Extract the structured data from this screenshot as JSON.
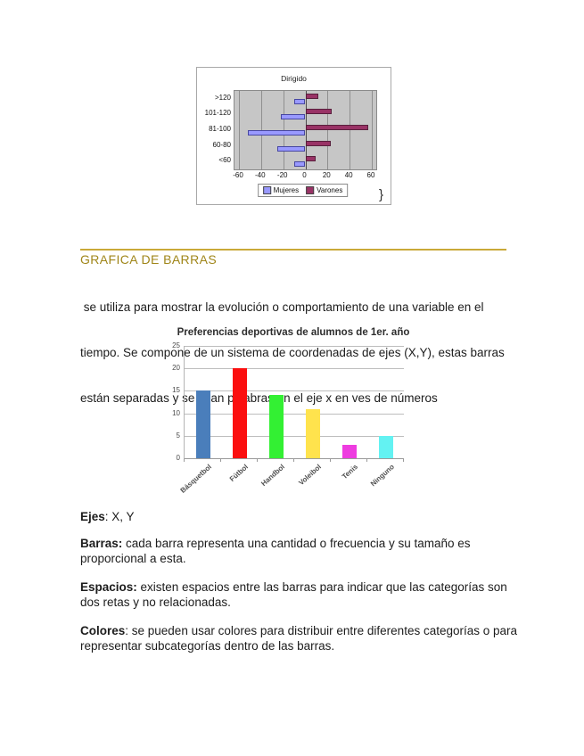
{
  "heading": {
    "text": "GRAFICA DE BARRAS",
    "color": "#a0861a",
    "rule_color": "#c9a938"
  },
  "stray_brace": "}",
  "intro": {
    "lines": [
      " se utiliza para mostrar la evolución o comportamiento de una variable en el",
      "tiempo. Se compone de un sistema de coordenadas de ejes (X,Y), estas barras",
      "están separadas y se usan palabras en el eje x en ves de números"
    ]
  },
  "definitions": [
    {
      "term": "Ejes",
      "rest": ": X, Y",
      "line2": ""
    },
    {
      "term": "Barras:",
      "rest": " cada barra representa una cantidad o frecuencia y su tamaño es",
      "line2": "proporcional a esta."
    },
    {
      "term": "Espacios:",
      "rest": " existen espacios entre las barras para indicar que las categorías son",
      "line2": "dos retas y no relacionadas."
    },
    {
      "term": "Colores",
      "rest": ": se pueden usar colores para distribuir entre diferentes categorías o para",
      "line2": "representar subcategorías dentro de las barras."
    }
  ],
  "chart_data": [
    {
      "type": "bar",
      "orientation": "horizontal",
      "title": "Dirigido",
      "categories": [
        ">120",
        "101-120",
        "81-100",
        "60-80",
        "<60"
      ],
      "series": [
        {
          "name": "Mujeres",
          "color": "#9999ff",
          "values": [
            -10,
            -22,
            -52,
            -25,
            -10
          ]
        },
        {
          "name": "Varones",
          "color": "#993366",
          "values": [
            12,
            24,
            57,
            23,
            9
          ]
        }
      ],
      "xticks": [
        -60,
        -40,
        -20,
        0,
        20,
        40,
        60
      ],
      "xlim": [
        -60,
        60
      ],
      "plot_bg": "#c6c6c6",
      "legend_position": "bottom"
    },
    {
      "type": "bar",
      "orientation": "vertical",
      "title": "Preferencias deportivas de alumnos de 1er. año",
      "categories": [
        "Básquetbol",
        "Fútbol",
        "Handbol",
        "Voleibol",
        "Tenis",
        "Ninguno"
      ],
      "values": [
        15,
        20,
        14,
        11,
        3,
        5
      ],
      "colors": [
        "#4a7ebb",
        "#fb0f0f",
        "#33f033",
        "#ffe34d",
        "#ee3ce0",
        "#63f2f2"
      ],
      "yticks": [
        0,
        5,
        10,
        15,
        20,
        25
      ],
      "ylim": [
        0,
        25
      ],
      "grid": true,
      "legend_position": "none"
    }
  ]
}
